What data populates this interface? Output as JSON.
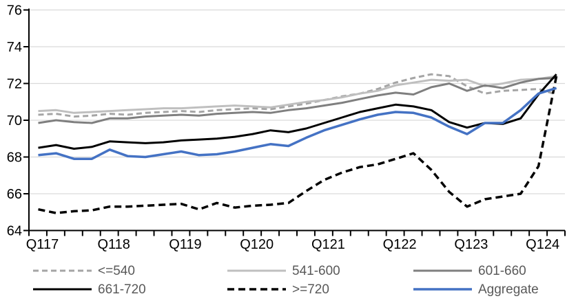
{
  "chart_data": {
    "type": "line",
    "title": "",
    "xlabel": "",
    "ylabel": "",
    "ylim": [
      64,
      76
    ],
    "y_ticks": [
      64,
      66,
      68,
      70,
      72,
      74,
      76
    ],
    "x_tick_labels": [
      "Q117",
      "Q118",
      "Q119",
      "Q120",
      "Q121",
      "Q122",
      "Q123",
      "Q124"
    ],
    "x_label_every_n_points": 4,
    "n_points": 30,
    "grid": "horizontal",
    "axis_color": "#000000",
    "gridline_color": "#d9d9d9",
    "tick_label_color": "#000000",
    "legend_text_color": "#595959",
    "series": [
      {
        "name": "<=540",
        "color": "#a5a5a5",
        "dash": "8 5",
        "width": 3,
        "values": [
          70.3,
          70.35,
          70.2,
          70.25,
          70.35,
          70.3,
          70.4,
          70.45,
          70.5,
          70.45,
          70.55,
          70.6,
          70.65,
          70.6,
          70.75,
          70.9,
          71.1,
          71.3,
          71.45,
          71.7,
          72.05,
          72.3,
          72.5,
          72.4,
          71.85,
          71.45,
          71.6,
          71.65,
          71.7,
          71.4
        ]
      },
      {
        "name": "541-600",
        "color": "#bfbfbf",
        "dash": "none",
        "width": 3,
        "values": [
          70.5,
          70.55,
          70.4,
          70.45,
          70.5,
          70.55,
          70.6,
          70.65,
          70.65,
          70.7,
          70.75,
          70.8,
          70.75,
          70.7,
          70.85,
          71.0,
          71.1,
          71.25,
          71.45,
          71.6,
          71.9,
          72.05,
          72.2,
          72.15,
          72.2,
          71.85,
          72.0,
          72.2,
          72.25,
          72.4
        ]
      },
      {
        "name": "601-660",
        "color": "#7f7f7f",
        "dash": "none",
        "width": 3,
        "values": [
          69.85,
          70.0,
          69.9,
          69.85,
          70.1,
          70.1,
          70.2,
          70.25,
          70.3,
          70.25,
          70.35,
          70.4,
          70.45,
          70.4,
          70.55,
          70.65,
          70.8,
          70.95,
          71.15,
          71.35,
          71.5,
          71.4,
          71.8,
          72.0,
          71.6,
          71.9,
          71.75,
          72.05,
          72.25,
          72.3
        ]
      },
      {
        "name": "661-720",
        "color": "#000000",
        "dash": "none",
        "width": 3,
        "values": [
          68.5,
          68.65,
          68.45,
          68.55,
          68.85,
          68.8,
          68.75,
          68.8,
          68.9,
          68.95,
          69.0,
          69.1,
          69.25,
          69.45,
          69.35,
          69.55,
          69.85,
          70.15,
          70.45,
          70.65,
          70.85,
          70.75,
          70.55,
          69.9,
          69.6,
          69.85,
          69.8,
          70.1,
          71.4,
          72.5
        ]
      },
      {
        "name": ">=720",
        "color": "#000000",
        "dash": "10 6",
        "width": 3.5,
        "values": [
          65.15,
          64.95,
          65.05,
          65.1,
          65.3,
          65.3,
          65.35,
          65.4,
          65.45,
          65.15,
          65.5,
          65.25,
          65.35,
          65.4,
          65.5,
          66.15,
          66.75,
          67.15,
          67.45,
          67.6,
          67.9,
          68.2,
          67.3,
          66.1,
          65.3,
          65.7,
          65.85,
          66.0,
          67.5,
          72.4
        ]
      },
      {
        "name": "Aggregate",
        "color": "#4472c4",
        "dash": "none",
        "width": 3.5,
        "values": [
          68.1,
          68.2,
          67.9,
          67.9,
          68.4,
          68.05,
          68.0,
          68.15,
          68.3,
          68.1,
          68.15,
          68.3,
          68.5,
          68.7,
          68.6,
          69.05,
          69.45,
          69.75,
          70.05,
          70.3,
          70.45,
          70.4,
          70.15,
          69.65,
          69.25,
          69.85,
          69.85,
          70.55,
          71.45,
          71.75
        ]
      }
    ],
    "legend": {
      "position": "bottom",
      "rows": [
        [
          "<=540",
          "541-600",
          "601-660"
        ],
        [
          "661-720",
          ">=720",
          "Aggregate"
        ]
      ]
    }
  }
}
